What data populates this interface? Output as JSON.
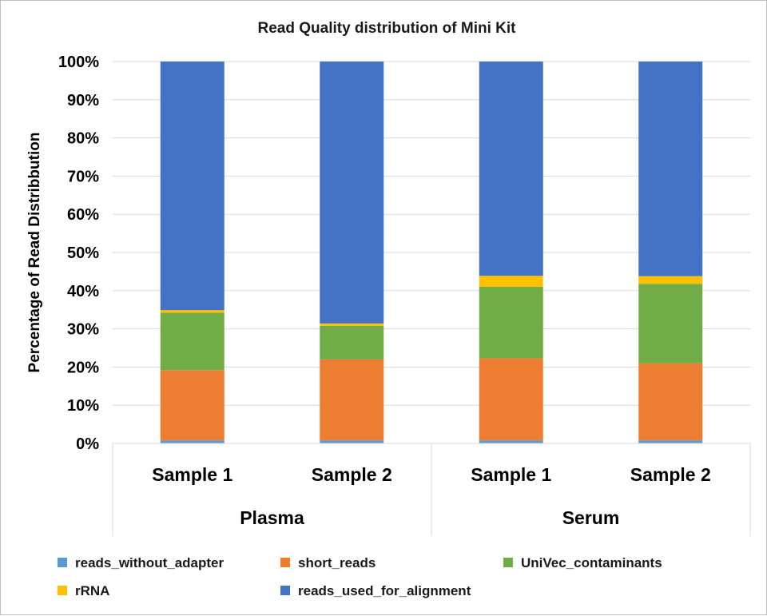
{
  "chart_data": {
    "type": "bar",
    "stacked": true,
    "title": "Read Quality distribution of Mini Kit",
    "ylabel": "Percentage of Read Distribbution",
    "xlabel": "",
    "ylim": [
      0,
      100
    ],
    "y_ticks": [
      "0%",
      "10%",
      "20%",
      "30%",
      "40%",
      "50%",
      "60%",
      "70%",
      "80%",
      "90%",
      "100%"
    ],
    "categories": [
      "Sample 1",
      "Sample 2",
      "Sample 1",
      "Sample 2"
    ],
    "groups": [
      {
        "label": "Plasma",
        "size": 2
      },
      {
        "label": "Serum",
        "size": 2
      }
    ],
    "series": [
      {
        "name": "reads_without_adapter",
        "color": "#5b9bd5",
        "values": [
          0.8,
          0.8,
          0.8,
          0.8
        ]
      },
      {
        "name": "short_reads",
        "color": "#ed7d31",
        "values": [
          18.4,
          21.2,
          21.5,
          20.2
        ]
      },
      {
        "name": "UniVec_contaminants",
        "color": "#70ad47",
        "values": [
          15.0,
          8.8,
          18.7,
          20.8
        ]
      },
      {
        "name": "rRNA",
        "color": "#ffc000",
        "values": [
          0.7,
          0.6,
          2.9,
          2.0
        ]
      },
      {
        "name": "reads_used_for_alignment",
        "color": "#4472c4",
        "values": [
          65.1,
          68.6,
          56.1,
          56.2
        ]
      }
    ],
    "grid": true,
    "legend_position": "bottom"
  }
}
